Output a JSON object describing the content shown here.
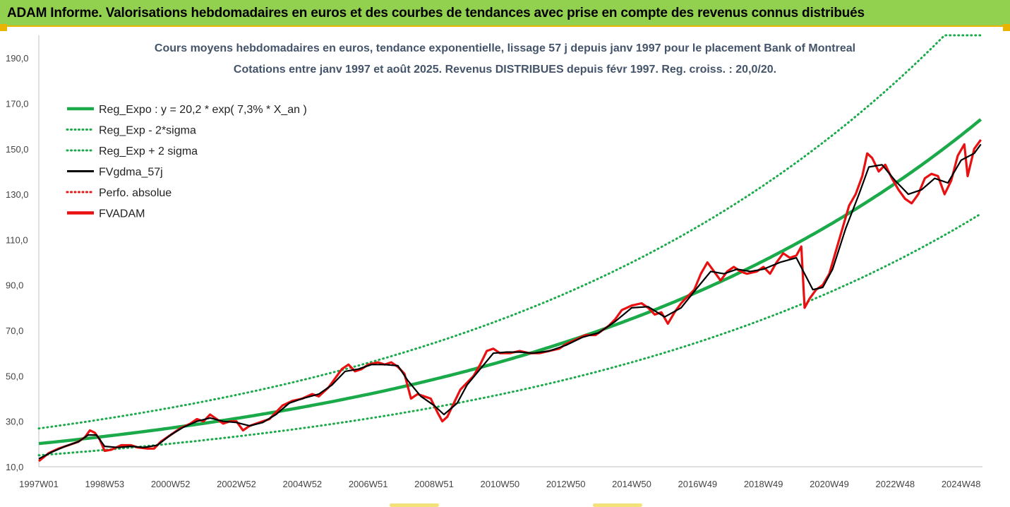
{
  "banner": {
    "title": "ADAM Informe. Valorisations hebdomadaires en euros et des courbes de tendances avec prise en compte des revenus connus distribués"
  },
  "colors": {
    "banner_bg": "#92d050",
    "trend": "#1aaa4a",
    "smooth": "#000000",
    "adam": "#e81010",
    "title": "#44546a"
  },
  "chart_data": {
    "type": "line",
    "title": "Cours moyens hebdomadaires en euros, tendance exponentielle, lissage 57 j depuis janv 1997 pour le placement Bank of Montreal",
    "subtitle": "Cotations entre janv 1997 et août 2025.  Revenus DISTRIBUES depuis févr 1997.  Reg. croiss. : 20,0/20.",
    "xlabel": "",
    "ylabel": "",
    "x_tick_labels": [
      "1997W01",
      "1998W53",
      "2000W52",
      "2002W52",
      "2004W52",
      "2006W51",
      "2008W51",
      "2010W50",
      "2012W50",
      "2014W50",
      "2016W49",
      "2018W49",
      "2020W49",
      "2022W48",
      "2024W48"
    ],
    "x_tick_years": [
      1997.0,
      1999.0,
      2001.0,
      2003.0,
      2005.0,
      2007.0,
      2009.0,
      2011.0,
      2013.0,
      2015.0,
      2017.0,
      2019.0,
      2021.0,
      2023.0,
      2025.0
    ],
    "xlim": [
      1997.0,
      2025.65
    ],
    "ylim": [
      10,
      200
    ],
    "y_ticks": [
      10,
      30,
      50,
      70,
      90,
      110,
      130,
      150,
      170,
      190
    ],
    "y_tick_labels": [
      "10,0",
      "30,0",
      "50,0",
      "70,0",
      "90,0",
      "110,0",
      "130,0",
      "150,0",
      "170,0",
      "190,0"
    ],
    "grid": false,
    "legend_position": "top-left",
    "trend_model": {
      "a": 20.2,
      "rate": 0.073,
      "x0": 1997.0,
      "band_factor_low": 0.745,
      "band_factor_high": 1.33
    },
    "legend": [
      {
        "label": "Reg_Expo : y = 20,2 * exp( 7,3% *  X_an )",
        "style": "solid-thick",
        "color": "#1aaa4a"
      },
      {
        "label": "Reg_Exp - 2*sigma",
        "style": "dotted",
        "color": "#1aaa4a"
      },
      {
        "label": "Reg_Exp + 2 sigma",
        "style": "dotted",
        "color": "#1aaa4a"
      },
      {
        "label": "FVgdma_57j",
        "style": "solid",
        "color": "#000000"
      },
      {
        "label": "Perfo. absolue",
        "style": "dotted",
        "color": "#e81010"
      },
      {
        "label": "FVADAM",
        "style": "solid-thick",
        "color": "#e81010"
      }
    ],
    "series": [
      {
        "name": "FVADAM",
        "points": [
          [
            1997.0,
            12.5
          ],
          [
            1997.3,
            16
          ],
          [
            1997.6,
            18
          ],
          [
            1997.9,
            19.5
          ],
          [
            1998.2,
            21
          ],
          [
            1998.4,
            23
          ],
          [
            1998.55,
            26
          ],
          [
            1998.7,
            25
          ],
          [
            1998.85,
            22
          ],
          [
            1999.0,
            17
          ],
          [
            1999.2,
            17.5
          ],
          [
            1999.5,
            19.5
          ],
          [
            1999.8,
            19.5
          ],
          [
            2000.0,
            18.5
          ],
          [
            2000.3,
            18
          ],
          [
            2000.5,
            18
          ],
          [
            2000.7,
            21
          ],
          [
            2001.0,
            24
          ],
          [
            2001.3,
            27
          ],
          [
            2001.6,
            29
          ],
          [
            2001.8,
            31
          ],
          [
            2002.0,
            30
          ],
          [
            2002.2,
            33
          ],
          [
            2002.4,
            31
          ],
          [
            2002.6,
            29
          ],
          [
            2002.8,
            30
          ],
          [
            2003.0,
            30
          ],
          [
            2003.2,
            26
          ],
          [
            2003.4,
            28
          ],
          [
            2003.6,
            29
          ],
          [
            2003.8,
            30
          ],
          [
            2004.0,
            31
          ],
          [
            2004.2,
            34
          ],
          [
            2004.4,
            37
          ],
          [
            2004.7,
            39
          ],
          [
            2005.0,
            40
          ],
          [
            2005.3,
            42
          ],
          [
            2005.5,
            41
          ],
          [
            2005.8,
            45
          ],
          [
            2006.0,
            49
          ],
          [
            2006.2,
            53
          ],
          [
            2006.4,
            55
          ],
          [
            2006.6,
            52
          ],
          [
            2006.8,
            53
          ],
          [
            2007.0,
            55
          ],
          [
            2007.3,
            56
          ],
          [
            2007.5,
            55
          ],
          [
            2007.7,
            56
          ],
          [
            2007.9,
            54
          ],
          [
            2008.1,
            51
          ],
          [
            2008.3,
            40
          ],
          [
            2008.5,
            42
          ],
          [
            2008.7,
            41
          ],
          [
            2008.9,
            40
          ],
          [
            2009.1,
            34
          ],
          [
            2009.25,
            30
          ],
          [
            2009.4,
            32
          ],
          [
            2009.6,
            38
          ],
          [
            2009.8,
            44
          ],
          [
            2010.0,
            47
          ],
          [
            2010.2,
            50
          ],
          [
            2010.4,
            55
          ],
          [
            2010.6,
            61
          ],
          [
            2010.8,
            62
          ],
          [
            2011.0,
            60
          ],
          [
            2011.3,
            60
          ],
          [
            2011.6,
            61
          ],
          [
            2011.9,
            60
          ],
          [
            2012.2,
            60
          ],
          [
            2012.5,
            61
          ],
          [
            2012.8,
            62
          ],
          [
            2013.0,
            64
          ],
          [
            2013.3,
            66
          ],
          [
            2013.6,
            68
          ],
          [
            2013.9,
            68
          ],
          [
            2014.0,
            69
          ],
          [
            2014.3,
            72
          ],
          [
            2014.5,
            75
          ],
          [
            2014.7,
            79
          ],
          [
            2015.0,
            81
          ],
          [
            2015.3,
            82
          ],
          [
            2015.5,
            80
          ],
          [
            2015.7,
            77
          ],
          [
            2015.9,
            78
          ],
          [
            2016.1,
            73
          ],
          [
            2016.3,
            78
          ],
          [
            2016.5,
            82
          ],
          [
            2016.7,
            85
          ],
          [
            2016.9,
            88
          ],
          [
            2017.1,
            95
          ],
          [
            2017.3,
            100
          ],
          [
            2017.5,
            96
          ],
          [
            2017.7,
            92
          ],
          [
            2017.9,
            96
          ],
          [
            2018.1,
            98
          ],
          [
            2018.3,
            96
          ],
          [
            2018.5,
            95
          ],
          [
            2018.8,
            96
          ],
          [
            2019.0,
            98
          ],
          [
            2019.2,
            95
          ],
          [
            2019.4,
            100
          ],
          [
            2019.6,
            104
          ],
          [
            2019.8,
            102
          ],
          [
            2020.0,
            103
          ],
          [
            2020.15,
            107
          ],
          [
            2020.25,
            80
          ],
          [
            2020.4,
            84
          ],
          [
            2020.6,
            88
          ],
          [
            2020.8,
            90
          ],
          [
            2021.0,
            95
          ],
          [
            2021.2,
            105
          ],
          [
            2021.4,
            115
          ],
          [
            2021.6,
            125
          ],
          [
            2021.8,
            130
          ],
          [
            2022.0,
            138
          ],
          [
            2022.15,
            148
          ],
          [
            2022.3,
            146
          ],
          [
            2022.5,
            140
          ],
          [
            2022.7,
            143
          ],
          [
            2022.9,
            137
          ],
          [
            2023.1,
            132
          ],
          [
            2023.3,
            128
          ],
          [
            2023.5,
            126
          ],
          [
            2023.7,
            130
          ],
          [
            2023.9,
            137
          ],
          [
            2024.1,
            139
          ],
          [
            2024.3,
            138
          ],
          [
            2024.5,
            130
          ],
          [
            2024.7,
            136
          ],
          [
            2024.9,
            147
          ],
          [
            2025.1,
            152
          ],
          [
            2025.2,
            138
          ],
          [
            2025.4,
            150
          ],
          [
            2025.6,
            154
          ]
        ]
      },
      {
        "name": "FVgdma_57j",
        "points": [
          [
            1997.0,
            13.5
          ],
          [
            1997.4,
            16.5
          ],
          [
            1997.8,
            19
          ],
          [
            1998.2,
            21
          ],
          [
            1998.5,
            24
          ],
          [
            1998.75,
            24
          ],
          [
            1999.0,
            19
          ],
          [
            1999.4,
            18.5
          ],
          [
            1999.8,
            19
          ],
          [
            2000.2,
            18.5
          ],
          [
            2000.6,
            19.5
          ],
          [
            2001.0,
            24
          ],
          [
            2001.4,
            27.5
          ],
          [
            2001.8,
            30
          ],
          [
            2002.2,
            31.5
          ],
          [
            2002.6,
            30
          ],
          [
            2003.0,
            29.5
          ],
          [
            2003.4,
            28
          ],
          [
            2003.8,
            29.5
          ],
          [
            2004.2,
            33
          ],
          [
            2004.6,
            38
          ],
          [
            2005.0,
            40
          ],
          [
            2005.5,
            42
          ],
          [
            2005.9,
            46
          ],
          [
            2006.3,
            52
          ],
          [
            2006.7,
            53
          ],
          [
            2007.1,
            55
          ],
          [
            2007.5,
            55
          ],
          [
            2007.9,
            54.5
          ],
          [
            2008.2,
            48
          ],
          [
            2008.6,
            41
          ],
          [
            2009.0,
            37
          ],
          [
            2009.3,
            33
          ],
          [
            2009.7,
            38
          ],
          [
            2010.0,
            46
          ],
          [
            2010.4,
            53
          ],
          [
            2010.8,
            60
          ],
          [
            2011.2,
            60.5
          ],
          [
            2011.6,
            60.5
          ],
          [
            2012.0,
            60
          ],
          [
            2012.5,
            61
          ],
          [
            2013.0,
            63.5
          ],
          [
            2013.5,
            67
          ],
          [
            2014.0,
            69
          ],
          [
            2014.5,
            74
          ],
          [
            2015.0,
            80
          ],
          [
            2015.5,
            80.5
          ],
          [
            2016.0,
            76
          ],
          [
            2016.5,
            80
          ],
          [
            2017.0,
            89
          ],
          [
            2017.4,
            96
          ],
          [
            2017.8,
            95
          ],
          [
            2018.2,
            97
          ],
          [
            2018.6,
            96
          ],
          [
            2019.0,
            97
          ],
          [
            2019.5,
            100
          ],
          [
            2020.0,
            102
          ],
          [
            2020.25,
            95
          ],
          [
            2020.5,
            88
          ],
          [
            2020.8,
            89
          ],
          [
            2021.1,
            97
          ],
          [
            2021.5,
            115
          ],
          [
            2021.9,
            130
          ],
          [
            2022.2,
            142
          ],
          [
            2022.6,
            143
          ],
          [
            2023.0,
            136
          ],
          [
            2023.4,
            130
          ],
          [
            2023.8,
            132
          ],
          [
            2024.2,
            137
          ],
          [
            2024.6,
            135
          ],
          [
            2025.0,
            145
          ],
          [
            2025.4,
            148
          ],
          [
            2025.6,
            152
          ]
        ]
      }
    ]
  }
}
